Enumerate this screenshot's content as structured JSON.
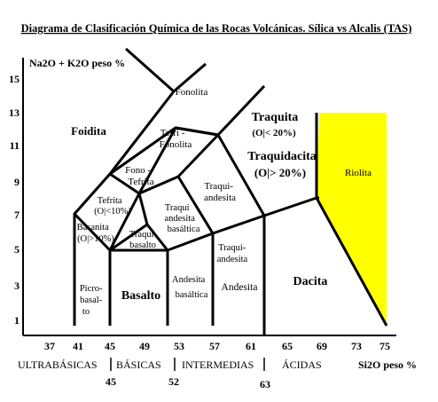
{
  "title": "Diagrama de Clasificación Química de las Rocas Volcánicas. Sílica vs Alcalis (TAS)",
  "y_axis_label": "Na2O + K2O peso %",
  "x_axis_label": "Si2O peso %",
  "y_ticks": [
    "15",
    "13",
    "11",
    "9",
    "7",
    "5",
    "3",
    "1"
  ],
  "x_ticks": [
    "37",
    "41",
    "45",
    "49",
    "53",
    "57",
    "61",
    "65",
    "69",
    "73",
    "75"
  ],
  "rock_classes": [
    "ULTRABÁSICAS",
    "BÁSICAS",
    "INTERMEDIAS",
    "ÁCIDAS"
  ],
  "class_limits": [
    "45",
    "52",
    "63"
  ],
  "fields": {
    "foidita": "Foidita",
    "fonolita": "Fonolita",
    "tefri_fonolita": [
      "Tefri -",
      "Fonolita"
    ],
    "traquita": "Traquita",
    "traquita_cond": "(O|< 20%)",
    "traquidacita": "Traquidacita",
    "traquidacita_cond": "(O|> 20%)",
    "fono_tefrita": [
      "Fono -",
      "Tefrita"
    ],
    "traquiandesita": [
      "Traqui-",
      "andesita"
    ],
    "riolita": "Riolita",
    "tefrita": [
      "Tefrita",
      "(O|<10%)"
    ],
    "basanita": [
      "Basanita",
      "(O|>10%)"
    ],
    "traquiandesita_basaltica": [
      "Traqui",
      "andesita",
      "basáltica"
    ],
    "traquibasalto": [
      "Traqui",
      "basalto"
    ],
    "traquiandesita_lower": [
      "Traqui-",
      "andesita"
    ],
    "picrobasalto": [
      "Picro-",
      "basal-",
      "to"
    ],
    "basalto": "Basalto",
    "andesita_basaltica": [
      "Andesita",
      "basáltica"
    ],
    "andesita": "Andesita",
    "dacita": "Dacita"
  },
  "colors": {
    "riolita_fill": "#ffff00",
    "lines": "#000000"
  }
}
